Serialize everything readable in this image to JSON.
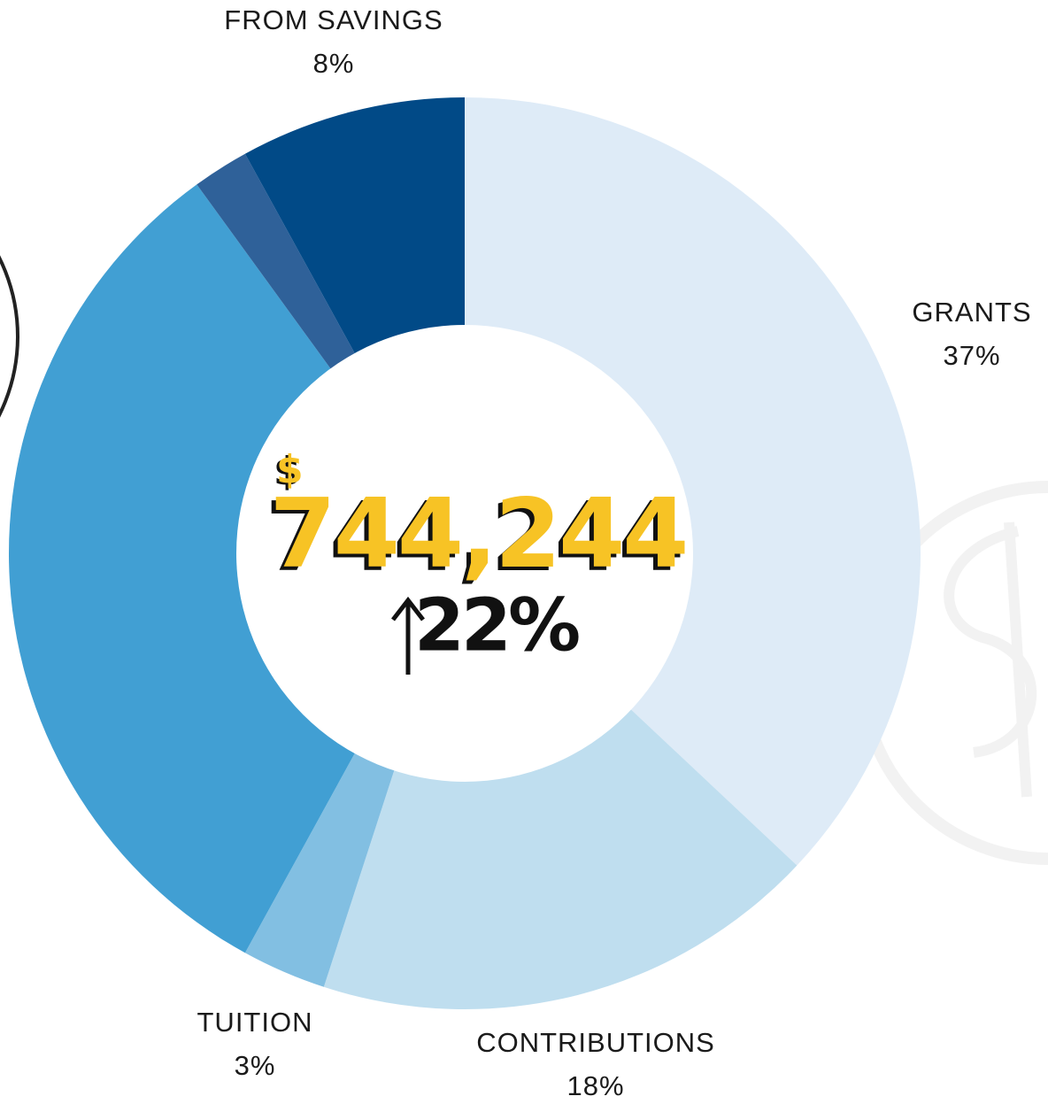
{
  "chart_data": {
    "type": "donut",
    "categories": [
      "GRANTS",
      "CONTRIBUTIONS",
      "TUITION",
      null,
      null,
      "FROM SAVINGS"
    ],
    "values": [
      37,
      18,
      3,
      32,
      2,
      8
    ],
    "value_labels": [
      "37%",
      "18%",
      "3%",
      null,
      null,
      "8%"
    ],
    "colors": [
      "#deebf7",
      "#bfdeef",
      "#82bfe2",
      "#419fd3",
      "#2f6199",
      "#014a87"
    ],
    "center_currency": "$",
    "center_amount": "744,244",
    "center_change": "22%"
  }
}
